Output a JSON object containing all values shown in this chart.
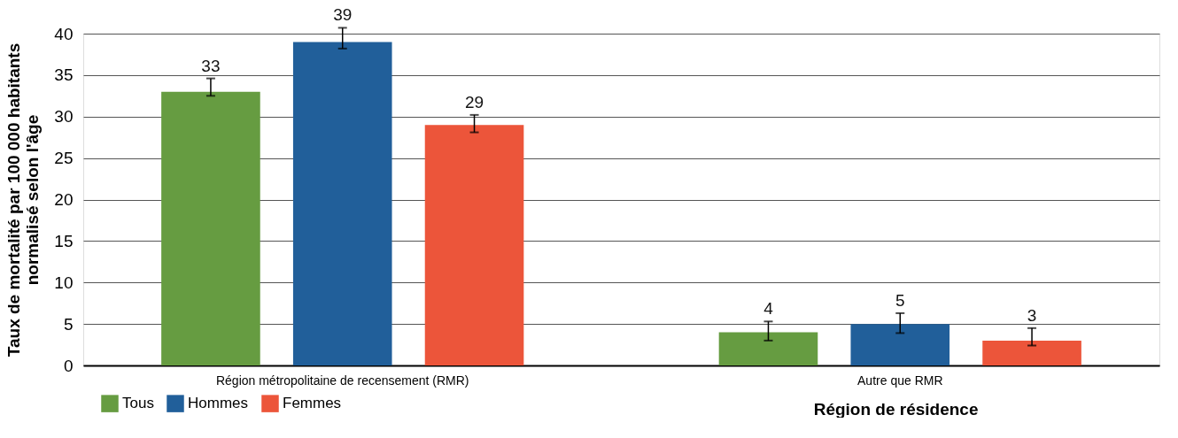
{
  "chart_data": {
    "type": "bar",
    "categories": [
      "Région métropolitaine de recensement (RMR)",
      "Autre que RMR"
    ],
    "xlabel": "Région de résidence",
    "ylabel": "Taux de mortalité par 100 000 habitants normalisé selon l'âge",
    "ylim": [
      0,
      40
    ],
    "yticks": [
      0,
      5,
      10,
      15,
      20,
      25,
      30,
      35,
      40
    ],
    "grid": "y",
    "legend": "bottom left",
    "data_labels": true,
    "series": [
      {
        "name": "Tous",
        "color": "#669c41",
        "values": [
          33,
          4
        ],
        "errors": [
          [
            32.5,
            34.6
          ],
          [
            3.0,
            5.3
          ]
        ]
      },
      {
        "name": "Hommes",
        "color": "#215f9a",
        "values": [
          39,
          5
        ],
        "errors": [
          [
            38.2,
            40.7
          ],
          [
            3.9,
            6.3
          ]
        ]
      },
      {
        "name": "Femmes",
        "color": "#ec553a",
        "values": [
          29,
          3
        ],
        "errors": [
          [
            28.1,
            30.2
          ],
          [
            2.4,
            4.5
          ]
        ]
      }
    ]
  }
}
